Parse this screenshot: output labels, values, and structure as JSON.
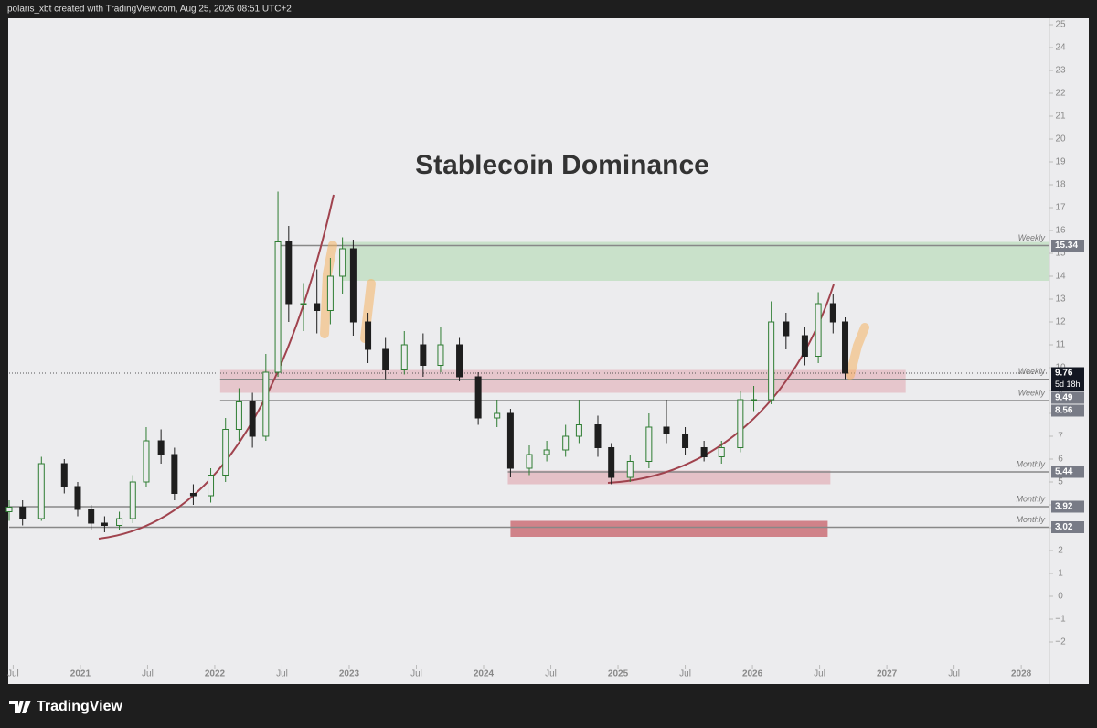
{
  "chart_data": {
    "type": "candlestick",
    "header": "polaris_xbt created with TradingView.com, Aug 25, 2026 08:51 UTC+2",
    "brand": "TradingView",
    "title": "Stablecoin Dominance",
    "x": [
      2020.47,
      2020.57,
      2020.71,
      2020.88,
      2020.98,
      2021.08,
      2021.18,
      2021.29,
      2021.39,
      2021.49,
      2021.6,
      2021.7,
      2021.84,
      2021.97,
      2022.08,
      2022.18,
      2022.28,
      2022.38,
      2022.47,
      2022.55,
      2022.66,
      2022.76,
      2022.86,
      2022.95,
      2023.03,
      2023.14,
      2023.27,
      2023.41,
      2023.55,
      2023.68,
      2023.82,
      2023.96,
      2024.1,
      2024.2,
      2024.34,
      2024.47,
      2024.61,
      2024.71,
      2024.85,
      2024.95,
      2025.09,
      2025.23,
      2025.36,
      2025.5,
      2025.64,
      2025.77,
      2025.91,
      2026.01,
      2026.14,
      2026.25,
      2026.39,
      2026.49,
      2026.6,
      2026.69
    ],
    "open": [
      3.7,
      3.9,
      3.4,
      5.8,
      4.8,
      3.8,
      3.2,
      3.1,
      3.4,
      5.0,
      6.8,
      6.2,
      4.5,
      4.4,
      5.3,
      7.3,
      8.5,
      7.0,
      9.8,
      15.5,
      12.8,
      12.8,
      12.5,
      14.0,
      15.2,
      12.0,
      10.8,
      9.9,
      11.0,
      10.1,
      11.0,
      9.6,
      7.8,
      8.0,
      5.6,
      6.2,
      6.4,
      7.0,
      7.5,
      6.5,
      5.2,
      5.9,
      7.4,
      7.1,
      6.5,
      6.1,
      6.5,
      8.6,
      8.6,
      12.0,
      11.4,
      10.5,
      12.8,
      12.0
    ],
    "high": [
      4.2,
      4.2,
      6.1,
      6.0,
      5.0,
      4.0,
      3.5,
      3.7,
      5.3,
      7.4,
      7.3,
      6.5,
      4.9,
      5.6,
      7.8,
      9.1,
      8.9,
      10.6,
      17.7,
      16.2,
      13.7,
      14.3,
      14.8,
      15.7,
      15.6,
      12.4,
      11.3,
      11.6,
      11.5,
      11.8,
      11.3,
      9.8,
      8.6,
      8.2,
      6.6,
      6.8,
      7.5,
      8.6,
      7.9,
      6.7,
      6.2,
      8.0,
      8.6,
      7.4,
      6.8,
      6.8,
      9.0,
      9.2,
      12.9,
      12.4,
      11.8,
      13.3,
      13.2,
      12.2
    ],
    "low": [
      3.3,
      3.1,
      3.3,
      4.5,
      3.5,
      2.9,
      2.8,
      2.9,
      3.2,
      4.8,
      5.8,
      4.2,
      4.0,
      4.1,
      5.0,
      6.8,
      6.5,
      6.8,
      9.6,
      12.0,
      11.6,
      11.5,
      11.9,
      13.2,
      11.4,
      10.2,
      9.5,
      9.7,
      9.6,
      9.8,
      9.4,
      7.5,
      7.4,
      5.2,
      5.3,
      5.9,
      6.1,
      6.7,
      6.1,
      4.9,
      5.0,
      5.6,
      6.7,
      6.2,
      5.9,
      5.8,
      6.3,
      8.1,
      8.4,
      10.8,
      10.1,
      10.2,
      11.5,
      9.5
    ],
    "close": [
      3.9,
      3.4,
      5.8,
      4.8,
      3.8,
      3.2,
      3.1,
      3.4,
      5.0,
      6.8,
      6.2,
      4.5,
      4.4,
      5.3,
      7.3,
      8.5,
      7.0,
      9.8,
      15.5,
      12.8,
      12.8,
      12.5,
      14.0,
      15.2,
      12.0,
      10.8,
      9.9,
      11.0,
      10.1,
      11.0,
      9.6,
      7.8,
      8.0,
      5.6,
      6.2,
      6.4,
      7.0,
      7.5,
      6.5,
      5.2,
      5.9,
      7.4,
      7.1,
      6.5,
      6.1,
      6.5,
      8.6,
      8.6,
      12.0,
      11.4,
      10.5,
      12.8,
      12.0,
      9.76
    ],
    "up_color": "#2e7d32",
    "down_color": "#1e1e1e",
    "countdown": "5d 18h",
    "xlim": [
      2020.47,
      2028.21
    ],
    "ylim": [
      -2.8,
      25.6
    ],
    "xticks": [
      {
        "value": 2020.5,
        "label": "Jul"
      },
      2021,
      {
        "value": 2021.5,
        "label": "Jul"
      },
      2022,
      {
        "value": 2022.5,
        "label": "Jul"
      },
      2023,
      {
        "value": 2023.5,
        "label": "Jul"
      },
      2024,
      {
        "value": 2024.5,
        "label": "Jul"
      },
      2025,
      {
        "value": 2025.5,
        "label": "Jul"
      },
      2026,
      {
        "value": 2026.5,
        "label": "Jul"
      },
      2027,
      {
        "value": 2027.5,
        "label": "Jul"
      },
      2028
    ],
    "yticks": [
      {
        "value": -2,
        "label": "−2"
      },
      {
        "value": -1,
        "label": "−1"
      },
      0,
      1,
      2,
      3,
      4,
      5,
      6,
      7,
      8,
      9,
      10,
      11,
      12,
      13,
      14,
      15,
      16,
      17,
      18,
      19,
      20,
      21,
      22,
      23,
      24,
      25
    ],
    "zones": [
      {
        "x": [
          2022.95,
          2028.21
        ],
        "y": [
          13.8,
          15.5
        ],
        "color": "rgba(120,200,120,0.3)"
      },
      {
        "x": [
          2022.04,
          2027.14
        ],
        "y": [
          8.9,
          9.9
        ],
        "color": "rgba(220,130,140,0.35)"
      },
      {
        "x": [
          2024.18,
          2026.58
        ],
        "y": [
          4.9,
          5.5
        ],
        "color": "rgba(220,130,140,0.4)"
      },
      {
        "x": [
          2024.2,
          2026.56
        ],
        "y": [
          2.6,
          3.3
        ],
        "color": "rgba(190,60,70,0.6)"
      }
    ],
    "levels": [
      {
        "value": 15.34,
        "label": "Weekly",
        "start": 2022.47
      },
      {
        "value": 9.49,
        "label": "Weekly",
        "start": 2022.04
      },
      {
        "value": 8.56,
        "label": "Weekly",
        "start": 2022.04
      },
      {
        "value": 5.44,
        "label": "Monthly",
        "start": 2024.18
      },
      {
        "value": 3.92,
        "label": "Monthly",
        "start": 2020.47
      },
      {
        "value": 3.02,
        "label": "Monthly",
        "start": 2020.47
      }
    ]
  }
}
